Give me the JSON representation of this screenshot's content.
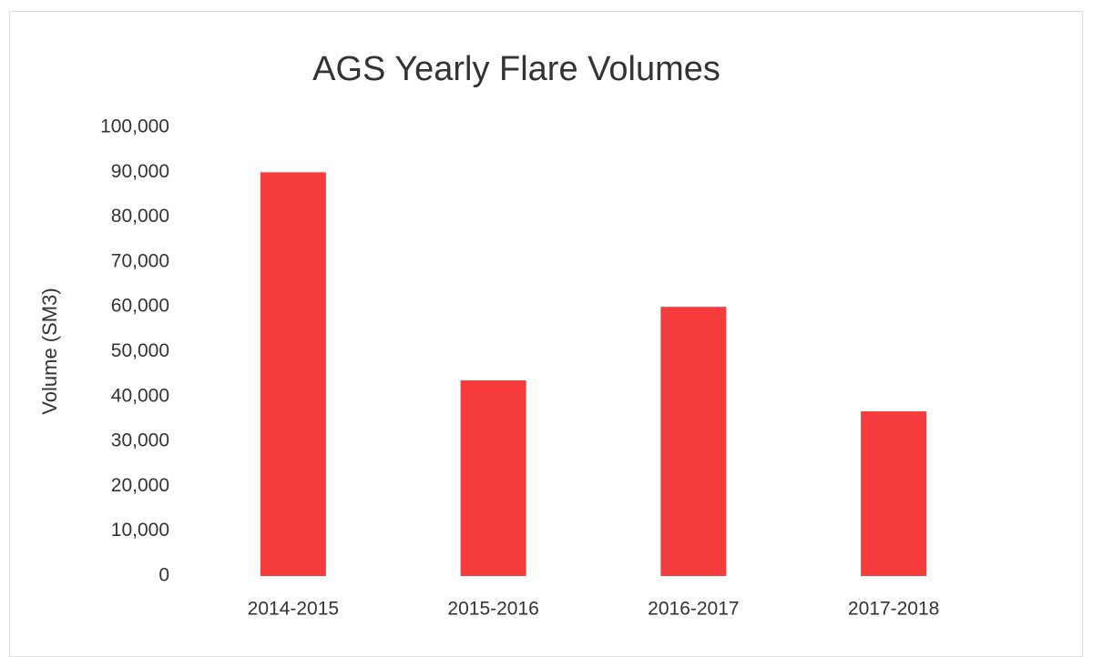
{
  "chart_data": {
    "type": "bar",
    "title": "AGS Yearly Flare Volumes",
    "y_label": "Volume (SM3)",
    "categories": [
      "2014-2015",
      "2015-2016",
      "2016-2017",
      "2017-2018"
    ],
    "values": [
      90000,
      43600,
      60000,
      36700
    ],
    "color": "#f53b3b",
    "ylim": [
      0,
      100000
    ],
    "yticks": [
      0,
      {
        "value": 10000,
        "label": "10,000"
      },
      {
        "value": 20000,
        "label": "20,000"
      },
      {
        "value": 30000,
        "label": "30,000"
      },
      {
        "value": 40000,
        "label": "40,000"
      },
      {
        "value": 50000,
        "label": "50,000"
      },
      {
        "value": 60000,
        "label": "60,000"
      },
      {
        "value": 70000,
        "label": "70,000"
      },
      {
        "value": 80000,
        "label": "80,000"
      },
      {
        "value": 90000,
        "label": "90,000"
      },
      {
        "value": 100000,
        "label": "100,000"
      }
    ],
    "grid": false
  }
}
